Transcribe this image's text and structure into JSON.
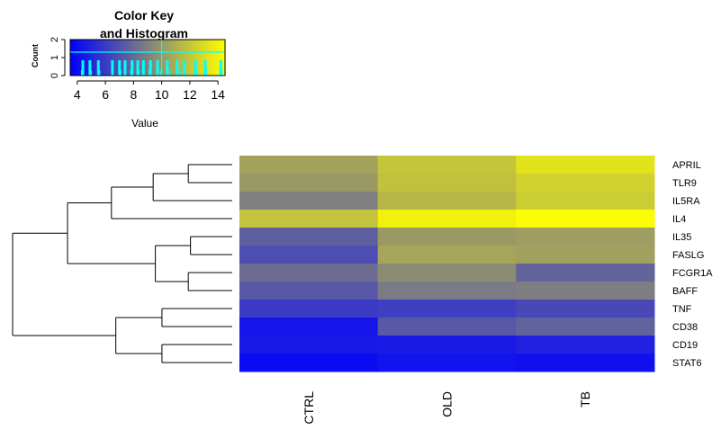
{
  "chart_data": [
    {
      "type": "histogram",
      "role": "color-key",
      "title": "Color Key\nand Histogram",
      "xlabel": "Value",
      "ylabel": "Count",
      "xlim": [
        3.5,
        14.5
      ],
      "ylim": [
        0,
        2
      ],
      "xticks": [
        4,
        6,
        8,
        10,
        12,
        14
      ],
      "yticks": [
        0,
        1,
        2
      ],
      "palette": [
        "#0000ff",
        "#808080",
        "#ffff00"
      ],
      "bins": [
        {
          "x": 4.4,
          "count": 1
        },
        {
          "x": 4.9,
          "count": 1
        },
        {
          "x": 5.5,
          "count": 1
        },
        {
          "x": 6.5,
          "count": 1
        },
        {
          "x": 7.0,
          "count": 1
        },
        {
          "x": 7.4,
          "count": 1
        },
        {
          "x": 7.9,
          "count": 1
        },
        {
          "x": 8.3,
          "count": 1
        },
        {
          "x": 8.7,
          "count": 1
        },
        {
          "x": 9.2,
          "count": 1
        },
        {
          "x": 9.7,
          "count": 1
        },
        {
          "x": 10.4,
          "count": 1
        },
        {
          "x": 11.1,
          "count": 1
        },
        {
          "x": 11.6,
          "count": 1
        },
        {
          "x": 12.4,
          "count": 1
        },
        {
          "x": 13.1,
          "count": 1
        },
        {
          "x": 14.2,
          "count": 1
        }
      ],
      "density_line": [
        [
          3.5,
          1.3
        ],
        [
          4.5,
          1.3
        ],
        [
          5.5,
          1.3
        ],
        [
          6.5,
          1.3
        ],
        [
          7.5,
          1.3
        ],
        [
          8.5,
          1.3
        ],
        [
          9.5,
          1.3
        ],
        [
          10.5,
          1.3
        ],
        [
          11.5,
          1.3
        ],
        [
          12.5,
          1.3
        ],
        [
          13.5,
          1.3
        ],
        [
          14.4,
          1.3
        ]
      ],
      "ticks_at": [
        4.3,
        5.0,
        5.6,
        7.1,
        7.8,
        8.4,
        9.1,
        9.9,
        10.0,
        10.6,
        11.3,
        12.5,
        13.2,
        14.3
      ]
    },
    {
      "type": "heatmap",
      "role": "main",
      "columns": [
        "CTRL",
        "OLD",
        "TB"
      ],
      "rows": [
        "APRIL",
        "TLR9",
        "IL5RA",
        "IL4",
        "IL35",
        "FASLG",
        "FCGR1A",
        "BAFF",
        "TNF",
        "CD38",
        "CD19",
        "STAT6"
      ],
      "value_range": [
        3.5,
        14.5
      ],
      "values": [
        [
          10.5,
          12.0,
          13.3
        ],
        [
          10.1,
          11.8,
          12.5
        ],
        [
          9.0,
          11.4,
          12.3
        ],
        [
          11.9,
          13.9,
          14.4
        ],
        [
          7.6,
          10.1,
          10.3
        ],
        [
          6.8,
          10.6,
          10.4
        ],
        [
          8.2,
          9.5,
          7.8
        ],
        [
          7.3,
          8.8,
          8.9
        ],
        [
          6.0,
          6.2,
          6.6
        ],
        [
          4.4,
          7.3,
          7.7
        ],
        [
          4.5,
          4.6,
          4.9
        ],
        [
          4.0,
          4.3,
          4.2
        ]
      ],
      "dendrogram": {
        "leaf_order": [
          "APRIL",
          "TLR9",
          "IL5RA",
          "IL4",
          "IL35",
          "FASLG",
          "FCGR1A",
          "BAFF",
          "TNF",
          "CD38",
          "CD19",
          "STAT6"
        ],
        "merges": [
          [
            0,
            1,
            0.2
          ],
          [
            "m1",
            2,
            0.36
          ],
          [
            "m2",
            3,
            0.55
          ],
          [
            4,
            5,
            0.19
          ],
          [
            6,
            7,
            0.2
          ],
          [
            "m4",
            "m5",
            0.35
          ],
          [
            "m3",
            "m6",
            0.75
          ],
          [
            8,
            9,
            0.32
          ],
          [
            10,
            11,
            0.32
          ],
          [
            "m8",
            "m9",
            0.53
          ],
          [
            "m7",
            "m10",
            1.0
          ]
        ]
      }
    }
  ]
}
